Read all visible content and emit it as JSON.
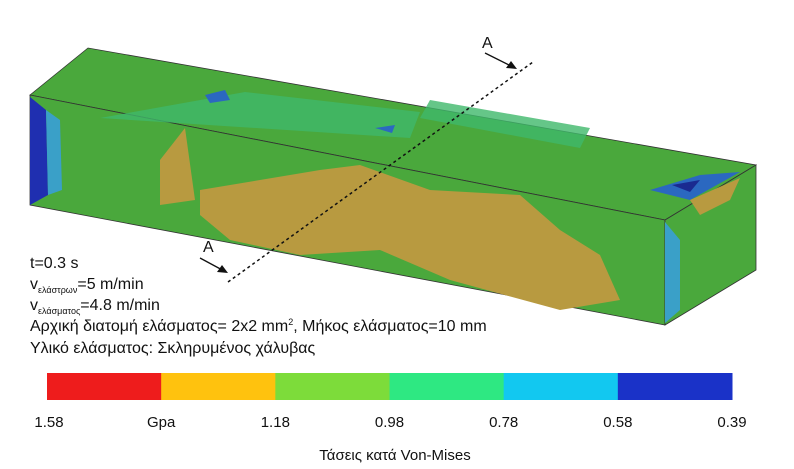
{
  "section_markers": [
    "A",
    "A"
  ],
  "annotations": {
    "time": "t=0.3 s",
    "roller_speed": {
      "symbol": "v",
      "subscript": "ελάστρων",
      "value": "=5 m/min"
    },
    "sheet_speed": {
      "symbol": "v",
      "subscript": "ελάσματος",
      "value": "=4.8 m/min"
    },
    "cross_section": {
      "text": "Αρχική διατομή ελάσματος= 2x2 mm",
      "superscript": "2",
      "length": ",  Μήκος ελάσματος=10 mm"
    },
    "material": "Υλικό ελάσματος: Σκληρυμένος χάλυβας"
  },
  "colorbar": {
    "colors": [
      "#ee1c1c",
      "#ffc20e",
      "#7ddc3a",
      "#2ee882",
      "#12c8f0",
      "#1a32c8"
    ],
    "labels": [
      "1.58",
      "Gpa",
      "1.18",
      "0.98",
      "0.78",
      "0.58",
      "0.39"
    ],
    "title": "Τάσεις κατά Von-Mises"
  }
}
